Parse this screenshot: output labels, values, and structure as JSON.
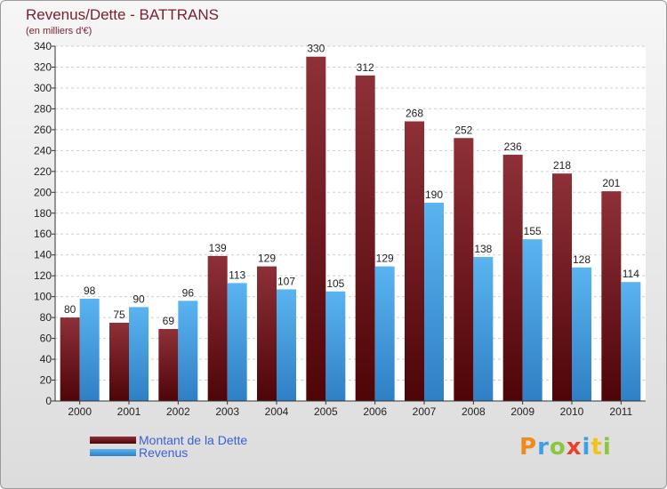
{
  "title": "Revenus/Dette - BATTRANS",
  "subtitle": "(en milliers d'€)",
  "brand": {
    "letters": [
      "P",
      "r",
      "o",
      "x",
      "i",
      "t",
      "i"
    ],
    "colors": [
      "#f08a1c",
      "#3ba0e6",
      "#8cc63f",
      "#e8412c",
      "#3ba0e6",
      "#f2c21b",
      "#8cc63f"
    ]
  },
  "legend": [
    {
      "label": "Montant de la Dette",
      "color": "#7a1f2b"
    },
    {
      "label": "Revenus",
      "color": "#4aa3e6"
    }
  ],
  "chart_data": {
    "type": "bar",
    "categories": [
      "2000",
      "2001",
      "2002",
      "2003",
      "2004",
      "2005",
      "2006",
      "2007",
      "2008",
      "2009",
      "2010",
      "2011"
    ],
    "series": [
      {
        "name": "Montant de la Dette",
        "color": "#7a1f2b",
        "values": [
          80,
          75,
          69,
          139,
          129,
          330,
          312,
          268,
          252,
          236,
          218,
          201
        ]
      },
      {
        "name": "Revenus",
        "color": "#4aa3e6",
        "values": [
          98,
          90,
          96,
          113,
          107,
          105,
          129,
          190,
          138,
          155,
          128,
          114
        ]
      }
    ],
    "ylim": [
      0,
      340
    ],
    "yticks": [
      0,
      20,
      40,
      60,
      80,
      100,
      120,
      140,
      160,
      180,
      200,
      220,
      240,
      260,
      280,
      300,
      320,
      340
    ],
    "grid": true,
    "data_labels": true
  }
}
